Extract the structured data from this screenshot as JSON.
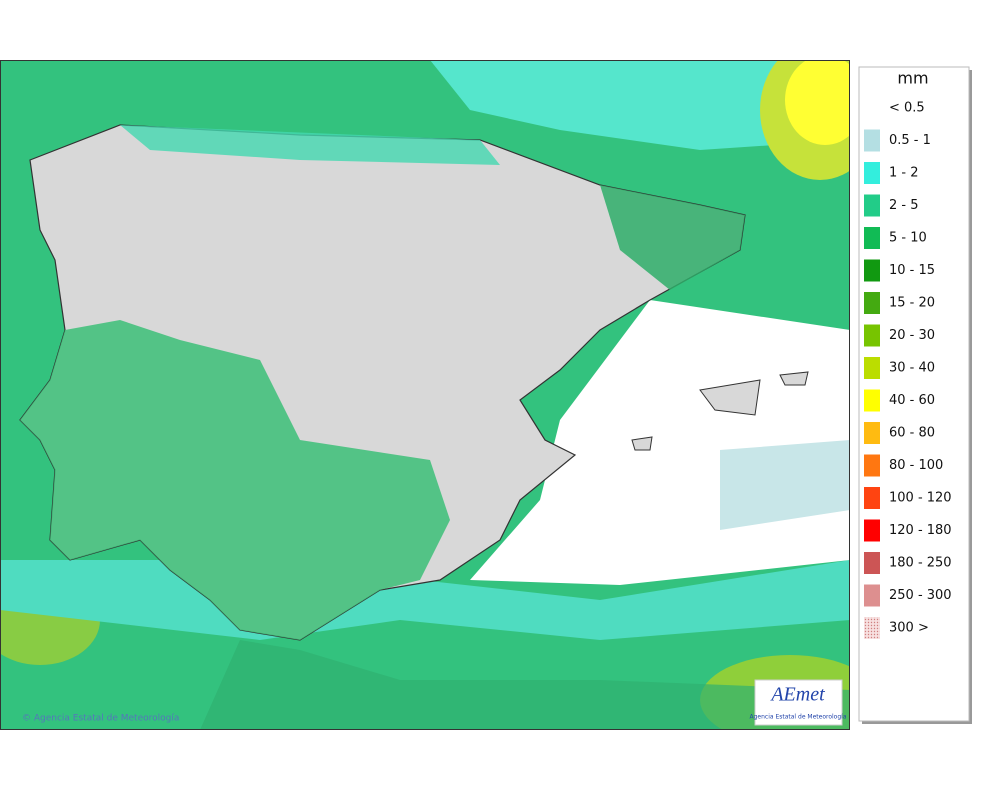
{
  "legend": {
    "title": "mm",
    "items": [
      {
        "label": "< 0.5",
        "color": "#ffffff"
      },
      {
        "label": "0.5 - 1",
        "color": "#b4dfe3"
      },
      {
        "label": "1 - 2",
        "color": "#33eedd"
      },
      {
        "label": "2 - 5",
        "color": "#22cc88"
      },
      {
        "label": "5 - 10",
        "color": "#11bb55"
      },
      {
        "label": "10 - 15",
        "color": "#119911"
      },
      {
        "label": "15 - 20",
        "color": "#44aa11"
      },
      {
        "label": "20 - 30",
        "color": "#77c400"
      },
      {
        "label": "30 - 40",
        "color": "#bbdd00"
      },
      {
        "label": "40 - 60",
        "color": "#ffff00"
      },
      {
        "label": "60 - 80",
        "color": "#ffbb11"
      },
      {
        "label": "80 - 100",
        "color": "#ff7711"
      },
      {
        "label": "100 - 120",
        "color": "#ff4411"
      },
      {
        "label": "120 - 180",
        "color": "#ff0000"
      },
      {
        "label": "180 - 250",
        "color": "#cc5555"
      },
      {
        "label": "250 - 300",
        "color": "#dd8f8f"
      },
      {
        "label": "300 >",
        "color": "#f2cccc"
      }
    ]
  },
  "footer": {
    "credit": "© Agencia Estatal de Meteorología"
  },
  "logo": {
    "name": "AEmet",
    "subtitle": "Agencia Estatal de Meteorología"
  }
}
